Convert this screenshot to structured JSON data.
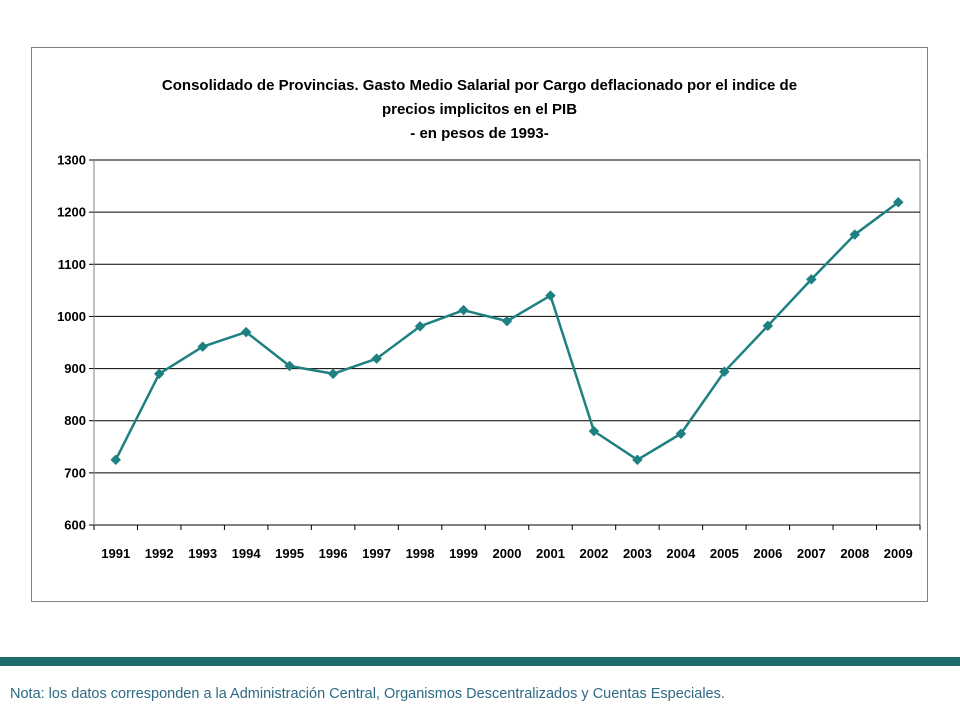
{
  "chart_data": {
    "type": "line",
    "title_lines": [
      "Consolidado de Provincias. Gasto Medio Salarial por Cargo deflacionado por el indice de",
      "precios implicitos en el PIB",
      "- en pesos de 1993-"
    ],
    "xlabel": "",
    "ylabel": "",
    "categories": [
      "1991",
      "1992",
      "1993",
      "1994",
      "1995",
      "1996",
      "1997",
      "1998",
      "1999",
      "2000",
      "2001",
      "2002",
      "2003",
      "2004",
      "2005",
      "2006",
      "2007",
      "2008",
      "2009"
    ],
    "series": [
      {
        "values": [
          725,
          890,
          942,
          970,
          905,
          890,
          919,
          981,
          1012,
          991,
          1040,
          780,
          725,
          775,
          894,
          982,
          1071,
          1157,
          1219
        ]
      }
    ],
    "ylim": [
      600,
      1300
    ],
    "yticks": [
      600,
      700,
      800,
      900,
      1000,
      1100,
      1200,
      1300
    ],
    "grid": true,
    "legend": "none",
    "line_color": "#1e8080",
    "marker": "diamond"
  },
  "footnote": "Nota: los datos corresponden a la Administración Central, Organismos Descentralizados y Cuentas Especiales.",
  "colors": {
    "accent_bar": "#1e6b6a",
    "footnote_text": "#2e6b84"
  }
}
